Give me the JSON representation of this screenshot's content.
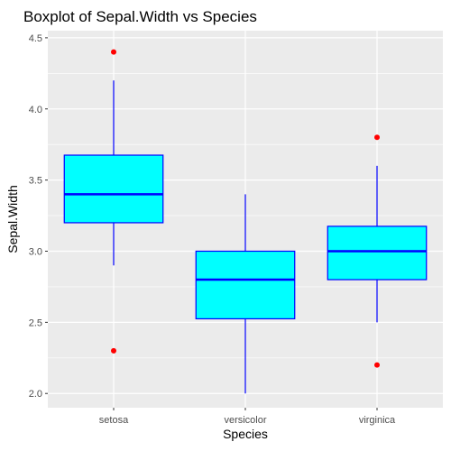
{
  "chart_data": {
    "type": "boxplot",
    "title": "Boxplot of Sepal.Width vs Species",
    "xlabel": "Species",
    "ylabel": "Sepal.Width",
    "categories": [
      "setosa",
      "versicolor",
      "virginica"
    ],
    "ylim": [
      1.9,
      4.55
    ],
    "yticks": [
      2.0,
      2.5,
      3.0,
      3.5,
      4.0,
      4.5
    ],
    "ytick_labels": [
      "2.0",
      "2.5",
      "3.0",
      "3.5",
      "4.0",
      "4.5"
    ],
    "boxes": [
      {
        "category": "setosa",
        "whisker_low": 2.9,
        "q1": 3.2,
        "median": 3.4,
        "q3": 3.675,
        "whisker_high": 4.2,
        "outliers": [
          4.4,
          2.3
        ]
      },
      {
        "category": "versicolor",
        "whisker_low": 2.0,
        "q1": 2.525,
        "median": 2.8,
        "q3": 3.0,
        "whisker_high": 3.4,
        "outliers": []
      },
      {
        "category": "virginica",
        "whisker_low": 2.5,
        "q1": 2.8,
        "median": 3.0,
        "q3": 3.175,
        "whisker_high": 3.6,
        "outliers": [
          3.8,
          2.2
        ]
      }
    ],
    "grid": true,
    "colors": {
      "box_fill": "#00ffff",
      "box_line": "#0000ff",
      "outlier": "#ff0000",
      "panel_background": "#ebebeb",
      "grid": "#ffffff"
    }
  }
}
